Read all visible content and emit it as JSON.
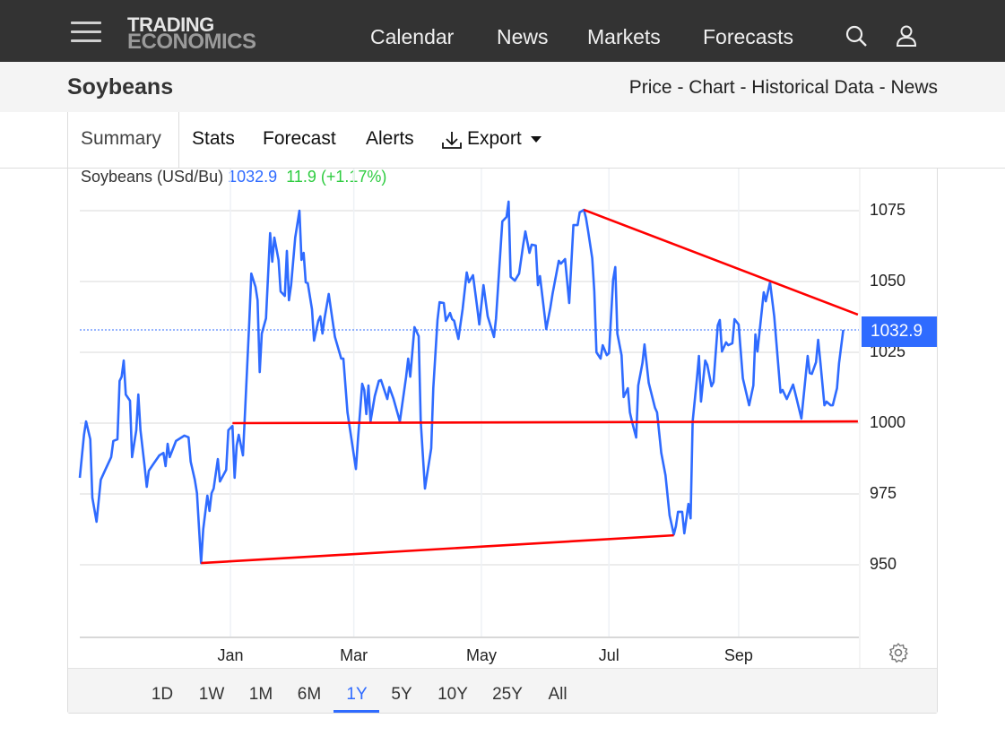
{
  "header": {
    "logo_line1": "TRADING",
    "logo_line2": "ECONOMICS",
    "nav": [
      "Calendar",
      "News",
      "Markets",
      "Forecasts"
    ],
    "icons": [
      "hamburger-menu-icon",
      "search-icon",
      "user-icon"
    ]
  },
  "subheader": {
    "title": "Soybeans",
    "links": "Price - Chart - Historical Data - News"
  },
  "tabs": [
    "Summary",
    "Stats",
    "Forecast",
    "Alerts",
    "Export"
  ],
  "legend": {
    "name": "Soybeans (USd/Bu)",
    "price": "1032.9",
    "change": "11.9 (+1.17%)"
  },
  "last_price_label": "1032.9",
  "ranges": [
    "1D",
    "1W",
    "1M",
    "6M",
    "1Y",
    "5Y",
    "10Y",
    "25Y",
    "All"
  ],
  "active_range": "1Y",
  "colors": {
    "series": "#2f6bff",
    "trendline": "#ff0000",
    "change_positive": "#2ecc40",
    "header_bg": "#333333"
  },
  "chart_data": {
    "type": "line",
    "title": "",
    "xlabel": "",
    "ylabel": "",
    "ylim": [
      924,
      1090
    ],
    "y_axis_position": "right",
    "grid": true,
    "yticks": [
      950,
      975,
      1000,
      1025,
      1050,
      1075
    ],
    "xticks": [
      {
        "label": "Jan",
        "date": "2025-01-01"
      },
      {
        "label": "Mar",
        "date": "2025-03-01"
      },
      {
        "label": "May",
        "date": "2025-05-01"
      },
      {
        "label": "Jul",
        "date": "2025-07-01"
      },
      {
        "label": "Sep",
        "date": "2025-09-01"
      }
    ],
    "last_value_line": 1032.9,
    "series": [
      {
        "points": [
          [
            "2024-10-21",
            980.7
          ],
          [
            "2024-10-23",
            995.9
          ],
          [
            "2024-10-24",
            1000.6
          ],
          [
            "2024-10-26",
            994.3
          ],
          [
            "2024-10-27",
            973.7
          ],
          [
            "2024-10-29",
            965.2
          ],
          [
            "2024-10-31",
            980.0
          ],
          [
            "2024-11-02",
            983.2
          ],
          [
            "2024-11-05",
            988.0
          ],
          [
            "2024-11-06",
            993.7
          ],
          [
            "2024-11-08",
            994.3
          ],
          [
            "2024-11-09",
            1014.9
          ],
          [
            "2024-11-10",
            1016.4
          ],
          [
            "2024-11-11",
            1022.1
          ],
          [
            "2024-11-12",
            1010.1
          ],
          [
            "2024-11-14",
            1007.9
          ],
          [
            "2024-11-15",
            988.0
          ],
          [
            "2024-11-17",
            997.5
          ],
          [
            "2024-11-18",
            1010.1
          ],
          [
            "2024-11-19",
            997.5
          ],
          [
            "2024-11-21",
            984.8
          ],
          [
            "2024-11-22",
            977.5
          ],
          [
            "2024-11-23",
            983.2
          ],
          [
            "2024-11-25",
            985.4
          ],
          [
            "2024-11-28",
            988.6
          ],
          [
            "2024-11-30",
            989.5
          ],
          [
            "2024-12-01",
            984.8
          ],
          [
            "2024-12-02",
            992.7
          ],
          [
            "2024-12-03",
            988.0
          ],
          [
            "2024-12-06",
            993.7
          ],
          [
            "2024-12-10",
            995.6
          ],
          [
            "2024-12-12",
            995.0
          ],
          [
            "2024-12-13",
            986.4
          ],
          [
            "2024-12-15",
            980.0
          ],
          [
            "2024-12-16",
            975.3
          ],
          [
            "2024-12-18",
            950.6
          ],
          [
            "2024-12-19",
            962.6
          ],
          [
            "2024-12-21",
            974.4
          ],
          [
            "2024-12-22",
            969.0
          ],
          [
            "2024-12-23",
            975.3
          ],
          [
            "2024-12-24",
            976.9
          ],
          [
            "2024-12-26",
            987.3
          ],
          [
            "2024-12-27",
            979.4
          ],
          [
            "2024-12-30",
            983.5
          ],
          [
            "2024-12-31",
            997.5
          ],
          [
            "2025-01-02",
            999.0
          ],
          [
            "2025-01-03",
            980.7
          ],
          [
            "2025-01-04",
            992.1
          ],
          [
            "2025-01-05",
            995.9
          ],
          [
            "2025-01-07",
            988.6
          ],
          [
            "2025-01-08",
            1003.8
          ],
          [
            "2025-01-10",
            1035.4
          ],
          [
            "2025-01-11",
            1052.8
          ],
          [
            "2025-01-13",
            1048.1
          ],
          [
            "2025-01-14",
            1043.4
          ],
          [
            "2025-01-15",
            1018.0
          ],
          [
            "2025-01-16",
            1031.6
          ],
          [
            "2025-01-18",
            1037.0
          ],
          [
            "2025-01-20",
            1067.1
          ],
          [
            "2025-01-21",
            1057.0
          ],
          [
            "2025-01-22",
            1065.5
          ],
          [
            "2025-01-24",
            1057.6
          ],
          [
            "2025-01-25",
            1046.5
          ],
          [
            "2025-01-27",
            1044.9
          ],
          [
            "2025-01-28",
            1060.8
          ],
          [
            "2025-01-29",
            1043.4
          ],
          [
            "2025-01-30",
            1048.7
          ],
          [
            "2025-02-01",
            1065.5
          ],
          [
            "2025-02-03",
            1075.0
          ],
          [
            "2025-02-04",
            1057.6
          ],
          [
            "2025-02-05",
            1060.1
          ],
          [
            "2025-02-06",
            1049.7
          ],
          [
            "2025-02-07",
            1049.4
          ],
          [
            "2025-02-09",
            1040.2
          ],
          [
            "2025-02-10",
            1029.1
          ],
          [
            "2025-02-12",
            1036.1
          ],
          [
            "2025-02-13",
            1037.7
          ],
          [
            "2025-02-14",
            1031.6
          ],
          [
            "2025-02-15",
            1037.0
          ],
          [
            "2025-02-17",
            1045.6
          ],
          [
            "2025-02-18",
            1040.5
          ],
          [
            "2025-02-20",
            1030.4
          ],
          [
            "2025-02-23",
            1022.8
          ],
          [
            "2025-02-24",
            1022.8
          ],
          [
            "2025-02-26",
            1003.8
          ],
          [
            "2025-03-02",
            983.8
          ],
          [
            "2025-03-03",
            994.3
          ],
          [
            "2025-03-05",
            1013.9
          ],
          [
            "2025-03-06",
            1011.7
          ],
          [
            "2025-03-07",
            1003.2
          ],
          [
            "2025-03-08",
            1013.3
          ],
          [
            "2025-03-09",
            1000.6
          ],
          [
            "2025-03-11",
            1009.5
          ],
          [
            "2025-03-13",
            1014.9
          ],
          [
            "2025-03-14",
            1015.2
          ],
          [
            "2025-03-16",
            1010.8
          ],
          [
            "2025-03-17",
            1008.5
          ],
          [
            "2025-03-18",
            1012.7
          ],
          [
            "2025-03-20",
            1008.5
          ],
          [
            "2025-03-23",
            1000.6
          ],
          [
            "2025-03-26",
            1016.4
          ],
          [
            "2025-03-27",
            1022.8
          ],
          [
            "2025-03-28",
            1016.4
          ],
          [
            "2025-03-30",
            1033.9
          ],
          [
            "2025-04-01",
            1030.7
          ],
          [
            "2025-04-02",
            1000.6
          ],
          [
            "2025-04-04",
            976.9
          ],
          [
            "2025-04-05",
            981.6
          ],
          [
            "2025-04-07",
            991.1
          ],
          [
            "2025-04-08",
            1012.3
          ],
          [
            "2025-04-10",
            1036.4
          ],
          [
            "2025-04-11",
            1042.7
          ],
          [
            "2025-04-13",
            1042.4
          ],
          [
            "2025-04-14",
            1036.1
          ],
          [
            "2025-04-16",
            1038.9
          ],
          [
            "2025-04-17",
            1036.7
          ],
          [
            "2025-04-18",
            1036.1
          ],
          [
            "2025-04-20",
            1029.7
          ],
          [
            "2025-04-22",
            1040.2
          ],
          [
            "2025-04-24",
            1053.2
          ],
          [
            "2025-04-25",
            1049.7
          ],
          [
            "2025-04-27",
            1052.2
          ],
          [
            "2025-04-29",
            1040.8
          ],
          [
            "2025-04-30",
            1034.8
          ],
          [
            "2025-05-02",
            1048.7
          ],
          [
            "2025-05-04",
            1037.7
          ],
          [
            "2025-05-07",
            1030.4
          ],
          [
            "2025-05-08",
            1037.0
          ],
          [
            "2025-05-11",
            1071.2
          ],
          [
            "2025-05-13",
            1072.8
          ],
          [
            "2025-05-14",
            1078.2
          ],
          [
            "2025-05-15",
            1051.6
          ],
          [
            "2025-05-17",
            1050.3
          ],
          [
            "2025-05-19",
            1052.8
          ],
          [
            "2025-05-21",
            1063.0
          ],
          [
            "2025-05-22",
            1067.7
          ],
          [
            "2025-05-24",
            1060.1
          ],
          [
            "2025-05-25",
            1063.0
          ],
          [
            "2025-05-27",
            1062.7
          ],
          [
            "2025-05-28",
            1048.7
          ],
          [
            "2025-05-29",
            1051.9
          ],
          [
            "2025-06-01",
            1033.2
          ],
          [
            "2025-06-03",
            1040.8
          ],
          [
            "2025-06-04",
            1045.6
          ],
          [
            "2025-06-07",
            1057.3
          ],
          [
            "2025-06-08",
            1056.3
          ],
          [
            "2025-06-10",
            1057.9
          ],
          [
            "2025-06-12",
            1042.4
          ],
          [
            "2025-06-14",
            1069.9
          ],
          [
            "2025-06-16",
            1069.9
          ],
          [
            "2025-06-17",
            1074.4
          ],
          [
            "2025-06-19",
            1075.3
          ],
          [
            "2025-06-20",
            1072.5
          ],
          [
            "2025-06-21",
            1068.0
          ],
          [
            "2025-06-23",
            1058.2
          ],
          [
            "2025-06-24",
            1046.5
          ],
          [
            "2025-06-25",
            1025.0
          ],
          [
            "2025-06-27",
            1022.8
          ],
          [
            "2025-06-28",
            1027.5
          ],
          [
            "2025-06-30",
            1024.0
          ],
          [
            "2025-07-01",
            1024.7
          ],
          [
            "2025-07-03",
            1050.6
          ],
          [
            "2025-07-04",
            1055.1
          ],
          [
            "2025-07-05",
            1031.6
          ],
          [
            "2025-07-07",
            1024.0
          ],
          [
            "2025-07-08",
            1009.2
          ],
          [
            "2025-07-10",
            1012.3
          ],
          [
            "2025-07-11",
            1003.8
          ],
          [
            "2025-07-12",
            1000.6
          ],
          [
            "2025-07-14",
            994.9
          ],
          [
            "2025-07-15",
            1013.3
          ],
          [
            "2025-07-17",
            1021.2
          ],
          [
            "2025-07-18",
            1027.8
          ],
          [
            "2025-07-20",
            1014.2
          ],
          [
            "2025-07-23",
            1005.4
          ],
          [
            "2025-07-24",
            1003.8
          ],
          [
            "2025-07-26",
            989.5
          ],
          [
            "2025-07-28",
            981.6
          ],
          [
            "2025-07-30",
            967.4
          ],
          [
            "2025-08-01",
            960.7
          ],
          [
            "2025-08-02",
            963.6
          ],
          [
            "2025-08-03",
            968.7
          ],
          [
            "2025-08-05",
            968.7
          ],
          [
            "2025-08-06",
            961.1
          ],
          [
            "2025-08-08",
            971.5
          ],
          [
            "2025-08-09",
            966.4
          ],
          [
            "2025-08-10",
            1000.6
          ],
          [
            "2025-08-12",
            1015.5
          ],
          [
            "2025-08-13",
            1023.7
          ],
          [
            "2025-08-14",
            1007.6
          ],
          [
            "2025-08-16",
            1022.1
          ],
          [
            "2025-08-17",
            1020.6
          ],
          [
            "2025-08-19",
            1013.0
          ],
          [
            "2025-08-20",
            1014.5
          ],
          [
            "2025-08-22",
            1034.5
          ],
          [
            "2025-08-23",
            1036.4
          ],
          [
            "2025-08-24",
            1025.3
          ],
          [
            "2025-08-26",
            1028.5
          ],
          [
            "2025-08-27",
            1027.5
          ],
          [
            "2025-08-29",
            1028.2
          ],
          [
            "2025-08-30",
            1036.7
          ],
          [
            "2025-09-01",
            1034.8
          ],
          [
            "2025-09-03",
            1015.8
          ],
          [
            "2025-09-06",
            1006.3
          ],
          [
            "2025-09-08",
            1013.3
          ],
          [
            "2025-09-09",
            1031.3
          ],
          [
            "2025-09-10",
            1025.3
          ],
          [
            "2025-09-13",
            1046.2
          ],
          [
            "2025-09-14",
            1043.0
          ],
          [
            "2025-09-16",
            1049.7
          ],
          [
            "2025-09-18",
            1037.7
          ],
          [
            "2025-09-21",
            1010.8
          ],
          [
            "2025-09-22",
            1011.7
          ],
          [
            "2025-09-24",
            1008.5
          ],
          [
            "2025-09-27",
            1013.6
          ],
          [
            "2025-09-28",
            1010.8
          ],
          [
            "2025-10-01",
            1001.6
          ],
          [
            "2025-10-04",
            1023.7
          ],
          [
            "2025-10-05",
            1017.7
          ],
          [
            "2025-10-06",
            1017.4
          ],
          [
            "2025-10-08",
            1021.5
          ],
          [
            "2025-10-09",
            1029.4
          ],
          [
            "2025-10-10",
            1022.1
          ],
          [
            "2025-10-12",
            1006.3
          ],
          [
            "2025-10-13",
            1007.6
          ],
          [
            "2025-10-15",
            1006.3
          ],
          [
            "2025-10-16",
            1006.3
          ],
          [
            "2025-10-18",
            1012.3
          ],
          [
            "2025-10-19",
            1021.2
          ],
          [
            "2025-10-21",
            1032.9
          ]
        ]
      }
    ],
    "trendlines": [
      {
        "from": [
          "2024-12-18",
          950.6
        ],
        "to": [
          "2025-08-01",
          960.4
        ]
      },
      {
        "from": [
          "2025-01-02",
          1000.0
        ],
        "to": [
          "2025-10-28",
          1000.6
        ]
      },
      {
        "from": [
          "2025-06-19",
          1075.3
        ],
        "to": [
          "2025-10-28",
          1038.3
        ]
      }
    ]
  }
}
